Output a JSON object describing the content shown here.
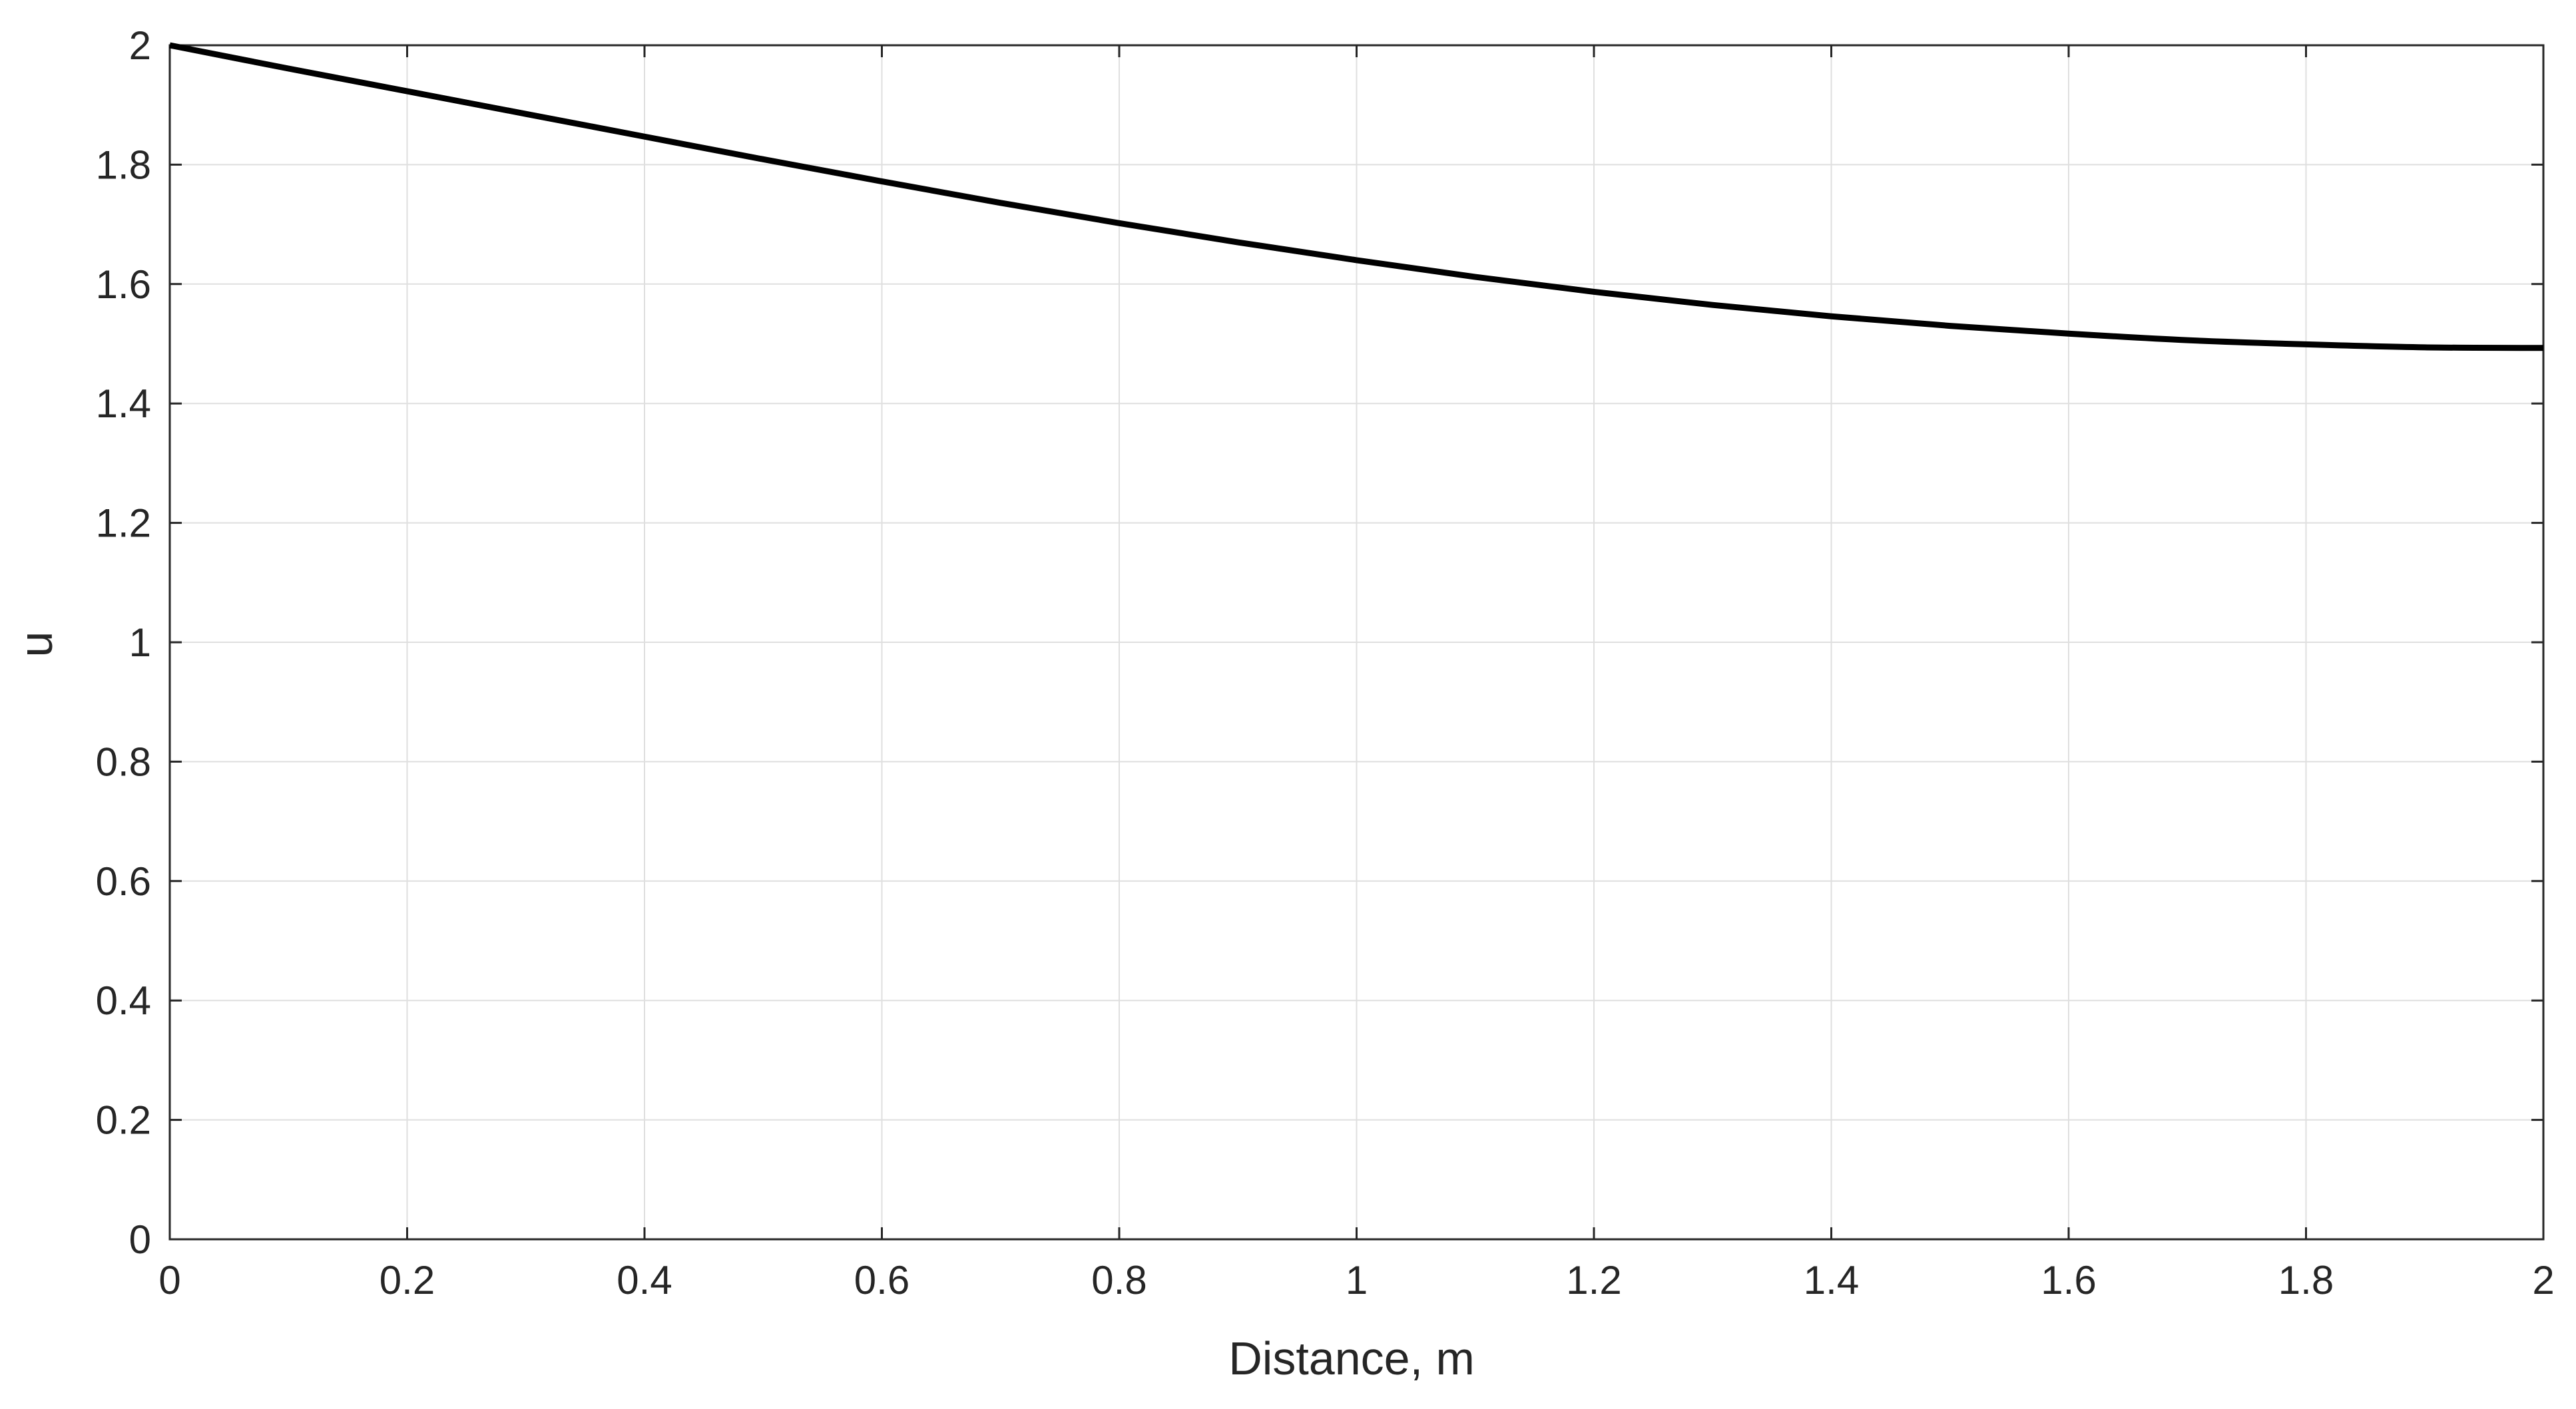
{
  "chart_data": {
    "type": "line",
    "title": "",
    "xlabel": "Distance, m",
    "ylabel": "u",
    "xlim": [
      0,
      2
    ],
    "ylim": [
      0,
      2
    ],
    "xticks": [
      0,
      0.2,
      0.4,
      0.6,
      0.8,
      1,
      1.2,
      1.4,
      1.6,
      1.8,
      2
    ],
    "yticks": [
      0,
      0.2,
      0.4,
      0.6,
      0.8,
      1,
      1.2,
      1.4,
      1.6,
      1.8,
      2
    ],
    "xtick_labels": [
      "0",
      "0.2",
      "0.4",
      "0.6",
      "0.8",
      "1",
      "1.2",
      "1.4",
      "1.6",
      "1.8",
      "2"
    ],
    "ytick_labels": [
      "0",
      "0.2",
      "0.4",
      "0.6",
      "0.8",
      "1",
      "1.2",
      "1.4",
      "1.6",
      "1.8",
      "2"
    ],
    "grid": true,
    "colors": {
      "line": "#000000",
      "grid": "#dfdfdf",
      "axes": "#262626"
    },
    "series": [
      {
        "x": [
          0,
          0.1,
          0.2,
          0.3,
          0.4,
          0.5,
          0.6,
          0.7,
          0.8,
          0.9,
          1.0,
          1.1,
          1.2,
          1.3,
          1.4,
          1.5,
          1.6,
          1.7,
          1.8,
          1.9,
          2.0
        ],
        "y": [
          2.0,
          1.961,
          1.923,
          1.885,
          1.847,
          1.809,
          1.772,
          1.736,
          1.702,
          1.67,
          1.64,
          1.612,
          1.587,
          1.565,
          1.546,
          1.53,
          1.517,
          1.506,
          1.499,
          1.494,
          1.493
        ]
      }
    ]
  }
}
